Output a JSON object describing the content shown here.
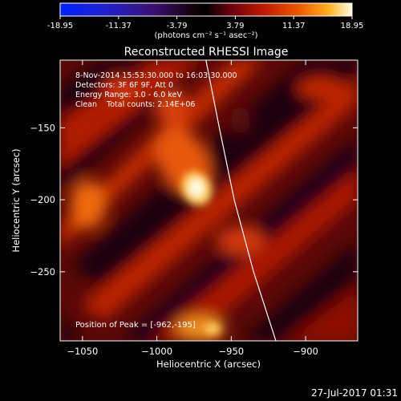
{
  "colorbar": {
    "tick_labels": [
      "-18.95",
      "-11.37",
      "-3.79",
      "3.79",
      "11.37",
      "18.95"
    ],
    "range": [
      -18.95,
      18.95
    ],
    "units": "(photons cm⁻² s⁻¹ asec⁻²)",
    "colormap": "blue-purple-red-yellow-white"
  },
  "chart_data": {
    "type": "heatmap",
    "title": "Reconstructed RHESSI Image",
    "xlabel": "Heliocentric X (arcsec)",
    "ylabel": "Heliocentric Y (arcsec)",
    "xlim": [
      -1065,
      -865
    ],
    "ylim": [
      -298,
      -103
    ],
    "x_ticks": [
      -1050,
      -1000,
      -950,
      -900
    ],
    "x_tick_labels": [
      "−1050",
      "−1000",
      "−950",
      "−900"
    ],
    "y_ticks": [
      -150,
      -200,
      -250
    ],
    "y_tick_labels": [
      "−150",
      "−200",
      "−250"
    ],
    "annotations": [
      "8-Nov-2014 15:53:30.000 to 16:03:30.000",
      "Detectors: 3F 6F 9F, Att 0",
      "Energy Range: 3.0 - 6.0 keV",
      "Clean    Total counts: 2.14E+06"
    ],
    "peak_label": "Position of Peak = [-962,-195]",
    "peak": [
      -962,
      -195
    ],
    "limb_curve": [
      [
        -967,
        -103
      ],
      [
        -958,
        -150
      ],
      [
        -948,
        -200
      ],
      [
        -935,
        -250
      ],
      [
        -920,
        -298
      ]
    ]
  },
  "footer": {
    "timestamp": "27-Jul-2017 01:31"
  },
  "colors": {
    "background": "#000000",
    "foreground": "#ffffff"
  }
}
